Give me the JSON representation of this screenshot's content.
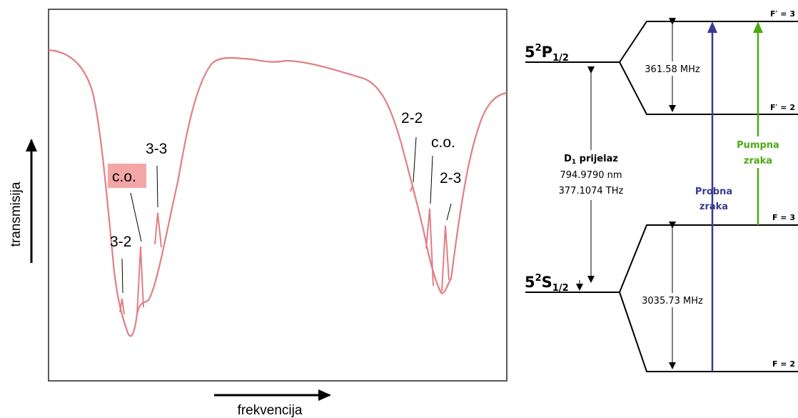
{
  "spectrum": {
    "x_axis_label": "frekvencija",
    "y_axis_label": "transmisija",
    "curve_color": "#e07f85",
    "highlight_color": "#f4a6a6",
    "peak_labels": {
      "l32": "3-2",
      "lco1": "c.o.",
      "l33": "3-3",
      "l22": "2-2",
      "lco2": "c.o.",
      "l23": "2-3"
    }
  },
  "levels": {
    "p_state": {
      "main": "5",
      "sup": "2",
      "letter": "P",
      "sub": "1/2"
    },
    "s_state": {
      "main": "5",
      "sup": "2",
      "letter": "S",
      "sub": "1/2"
    },
    "f_p3": "F′ = 3",
    "f_p2": "F′ = 2",
    "f_s3": "F = 3",
    "f_s2": "F = 2",
    "split_p": "361.58 MHz",
    "split_s": "3035.73 MHz",
    "d1": {
      "d": "D",
      "sub": "1",
      "rest": " prijelaz",
      "wavelength": "794.9790 nm",
      "frequency": "377.1074 THz"
    },
    "probe": {
      "line1": "Probna",
      "line2": "zraka",
      "color": "#3a3a8e"
    },
    "pump": {
      "line1": "Pumpna",
      "line2": "zraka",
      "color": "#4aaa12"
    }
  }
}
